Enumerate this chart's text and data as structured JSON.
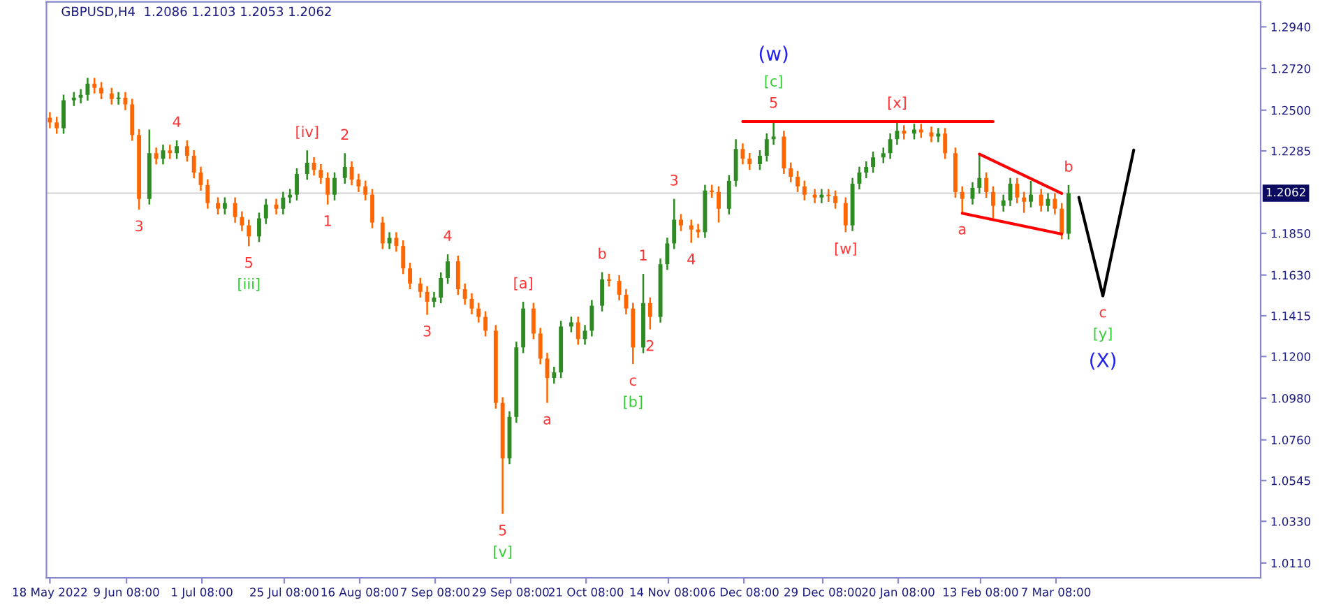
{
  "chart_data": {
    "type": "candlestick",
    "title": "GBPUSD,H4  1.2086 1.2103 1.2053 1.2062",
    "x": [
      "2022-05-18",
      "2022-05-20",
      "2022-05-22",
      "2022-05-25",
      "2022-05-27",
      "2022-05-29",
      "2022-05-31",
      "2022-06-02",
      "2022-06-05",
      "2022-06-07",
      "2022-06-09",
      "2022-06-11",
      "2022-06-13",
      "2022-06-16",
      "2022-06-18",
      "2022-06-20",
      "2022-06-22",
      "2022-06-24",
      "2022-06-27",
      "2022-06-29",
      "2022-07-01",
      "2022-07-03",
      "2022-07-06",
      "2022-07-08",
      "2022-07-11",
      "2022-07-13",
      "2022-07-15",
      "2022-07-18",
      "2022-07-20",
      "2022-07-23",
      "2022-07-25",
      "2022-07-27",
      "2022-07-29",
      "2022-08-01",
      "2022-08-03",
      "2022-08-05",
      "2022-08-07",
      "2022-08-09",
      "2022-08-12",
      "2022-08-14",
      "2022-08-16",
      "2022-08-18",
      "2022-08-20",
      "2022-08-23",
      "2022-08-25",
      "2022-08-27",
      "2022-08-29",
      "2022-08-31",
      "2022-09-03",
      "2022-09-05",
      "2022-09-07",
      "2022-09-09",
      "2022-09-11",
      "2022-09-14",
      "2022-09-16",
      "2022-09-18",
      "2022-09-20",
      "2022-09-22",
      "2022-09-25",
      "2022-09-27",
      "2022-09-29",
      "2022-10-01",
      "2022-10-03",
      "2022-10-06",
      "2022-10-08",
      "2022-10-10",
      "2022-10-12",
      "2022-10-14",
      "2022-10-17",
      "2022-10-19",
      "2022-10-21",
      "2022-10-23",
      "2022-10-26",
      "2022-10-28",
      "2022-10-31",
      "2022-11-02",
      "2022-11-04",
      "2022-11-07",
      "2022-11-09",
      "2022-11-12",
      "2022-11-14",
      "2022-11-16",
      "2022-11-18",
      "2022-11-21",
      "2022-11-23",
      "2022-11-25",
      "2022-11-27",
      "2022-11-29",
      "2022-12-02",
      "2022-12-04",
      "2022-12-06",
      "2022-12-08",
      "2022-12-11",
      "2022-12-13",
      "2022-12-15",
      "2022-12-18",
      "2022-12-20",
      "2022-12-22",
      "2022-12-24",
      "2022-12-27",
      "2022-12-29",
      "2022-12-31",
      "2023-01-02",
      "2023-01-05",
      "2023-01-07",
      "2023-01-09",
      "2023-01-11",
      "2023-01-13",
      "2023-01-16",
      "2023-01-18",
      "2023-01-20",
      "2023-01-22",
      "2023-01-25",
      "2023-01-27",
      "2023-01-30",
      "2023-02-01",
      "2023-02-03",
      "2023-02-06",
      "2023-02-08",
      "2023-02-11",
      "2023-02-13",
      "2023-02-15",
      "2023-02-17",
      "2023-02-20",
      "2023-02-22",
      "2023-02-24",
      "2023-02-26",
      "2023-02-28",
      "2023-03-03",
      "2023-03-05",
      "2023-03-07",
      "2023-03-09",
      "2023-03-11"
    ],
    "ohlc": [
      [
        1.246,
        1.249,
        1.2405,
        1.2435
      ],
      [
        1.2435,
        1.2465,
        1.2375,
        1.2405
      ],
      [
        1.2405,
        1.2582,
        1.2375,
        1.2552
      ],
      [
        1.2552,
        1.2596,
        1.2522,
        1.2566
      ],
      [
        1.2566,
        1.2611,
        1.2536,
        1.2581
      ],
      [
        1.2581,
        1.267,
        1.2551,
        1.264
      ],
      [
        1.264,
        1.267,
        1.2588,
        1.2618
      ],
      [
        1.2618,
        1.2648,
        1.2558,
        1.2588
      ],
      [
        1.2588,
        1.2618,
        1.2529,
        1.2559
      ],
      [
        1.2559,
        1.2596,
        1.2529,
        1.2566
      ],
      [
        1.2566,
        1.2596,
        1.25,
        1.253
      ],
      [
        1.253,
        1.256,
        1.2339,
        1.2369
      ],
      [
        1.2369,
        1.2399,
        1.1975,
        1.2032
      ],
      [
        1.2032,
        1.2398,
        1.2002,
        1.2273
      ],
      [
        1.2273,
        1.2303,
        1.2214,
        1.2244
      ],
      [
        1.2244,
        1.2318,
        1.2214,
        1.2288
      ],
      [
        1.2288,
        1.2318,
        1.2243,
        1.2273
      ],
      [
        1.2273,
        1.234,
        1.2243,
        1.231
      ],
      [
        1.231,
        1.234,
        1.2229,
        1.2259
      ],
      [
        1.2259,
        1.2289,
        1.2141,
        1.2171
      ],
      [
        1.2171,
        1.2201,
        1.2075,
        1.2105
      ],
      [
        1.2105,
        1.2135,
        1.198,
        1.201
      ],
      [
        1.201,
        1.204,
        1.195,
        1.198
      ],
      [
        1.198,
        1.204,
        1.195,
        1.201
      ],
      [
        1.201,
        1.204,
        1.1906,
        1.1936
      ],
      [
        1.1936,
        1.1966,
        1.1862,
        1.1892
      ],
      [
        1.1892,
        1.1922,
        1.1782,
        1.1834
      ],
      [
        1.1834,
        1.1959,
        1.1804,
        1.1929
      ],
      [
        1.1929,
        1.2032,
        1.1899,
        1.2002
      ],
      [
        1.2002,
        1.2032,
        1.195,
        1.198
      ],
      [
        1.198,
        1.2069,
        1.195,
        1.2039
      ],
      [
        1.2039,
        1.2084,
        1.2009,
        1.2054
      ],
      [
        1.2054,
        1.2193,
        1.2024,
        1.2163
      ],
      [
        1.2163,
        1.2288,
        1.2133,
        1.2222
      ],
      [
        1.2222,
        1.2252,
        1.2155,
        1.2185
      ],
      [
        1.2185,
        1.2215,
        1.2112,
        1.2142
      ],
      [
        1.2142,
        1.2172,
        1.2002,
        1.2054
      ],
      [
        1.2054,
        1.2172,
        1.2024,
        1.2142
      ],
      [
        1.2142,
        1.2273,
        1.2112,
        1.22
      ],
      [
        1.22,
        1.223,
        1.2104,
        1.2134
      ],
      [
        1.2134,
        1.2164,
        1.2068,
        1.2098
      ],
      [
        1.2098,
        1.2128,
        1.2024,
        1.2054
      ],
      [
        1.2054,
        1.2084,
        1.1877,
        1.1907
      ],
      [
        1.1907,
        1.1937,
        1.1767,
        1.1797
      ],
      [
        1.1797,
        1.1856,
        1.1767,
        1.1826
      ],
      [
        1.1826,
        1.1856,
        1.1753,
        1.1783
      ],
      [
        1.1783,
        1.1813,
        1.1635,
        1.1665
      ],
      [
        1.1665,
        1.1695,
        1.1555,
        1.1585
      ],
      [
        1.1585,
        1.1615,
        1.1511,
        1.1541
      ],
      [
        1.1541,
        1.1571,
        1.142,
        1.1489
      ],
      [
        1.1489,
        1.1541,
        1.1459,
        1.1511
      ],
      [
        1.1511,
        1.1644,
        1.1481,
        1.1614
      ],
      [
        1.1614,
        1.1739,
        1.1584,
        1.1702
      ],
      [
        1.1702,
        1.1732,
        1.1525,
        1.1555
      ],
      [
        1.1555,
        1.1585,
        1.1474,
        1.1504
      ],
      [
        1.1504,
        1.1534,
        1.1423,
        1.1453
      ],
      [
        1.1453,
        1.1483,
        1.1379,
        1.1409
      ],
      [
        1.1409,
        1.1439,
        1.1306,
        1.1336
      ],
      [
        1.1336,
        1.1366,
        1.0925,
        1.0955
      ],
      [
        1.0955,
        1.0985,
        1.0369,
        1.0662
      ],
      [
        1.0662,
        1.0911,
        1.0632,
        1.0881
      ],
      [
        1.0881,
        1.1278,
        1.0851,
        1.1248
      ],
      [
        1.1248,
        1.1489,
        1.1218,
        1.1453
      ],
      [
        1.1453,
        1.1483,
        1.1291,
        1.1321
      ],
      [
        1.1321,
        1.1351,
        1.1159,
        1.1189
      ],
      [
        1.1189,
        1.1219,
        1.0955,
        1.1087
      ],
      [
        1.1087,
        1.1146,
        1.1057,
        1.1116
      ],
      [
        1.1116,
        1.1388,
        1.1086,
        1.1358
      ],
      [
        1.1358,
        1.141,
        1.1328,
        1.138
      ],
      [
        1.138,
        1.141,
        1.1262,
        1.1292
      ],
      [
        1.1292,
        1.1366,
        1.1262,
        1.1336
      ],
      [
        1.1336,
        1.1498,
        1.1306,
        1.1468
      ],
      [
        1.1468,
        1.1645,
        1.1438,
        1.1607
      ],
      [
        1.1607,
        1.1637,
        1.1569,
        1.1599
      ],
      [
        1.1599,
        1.1629,
        1.1496,
        1.1526
      ],
      [
        1.1526,
        1.1556,
        1.1423,
        1.1453
      ],
      [
        1.1453,
        1.1483,
        1.116,
        1.1248
      ],
      [
        1.1248,
        1.1636,
        1.1218,
        1.1482
      ],
      [
        1.1482,
        1.1512,
        1.1343,
        1.1409
      ],
      [
        1.1409,
        1.1717,
        1.1379,
        1.1687
      ],
      [
        1.1687,
        1.1827,
        1.1657,
        1.1797
      ],
      [
        1.1797,
        1.2032,
        1.1767,
        1.1922
      ],
      [
        1.1922,
        1.1952,
        1.1862,
        1.1892
      ],
      [
        1.1892,
        1.1922,
        1.18,
        1.187
      ],
      [
        1.187,
        1.19,
        1.1826,
        1.1856
      ],
      [
        1.1856,
        1.2106,
        1.1826,
        1.2076
      ],
      [
        1.2076,
        1.2106,
        1.2038,
        1.2068
      ],
      [
        1.2068,
        1.2098,
        1.1907,
        1.198
      ],
      [
        1.198,
        1.2157,
        1.195,
        1.2127
      ],
      [
        1.2127,
        1.2347,
        1.2097,
        1.2295
      ],
      [
        1.2295,
        1.2325,
        1.2214,
        1.2244
      ],
      [
        1.2244,
        1.2274,
        1.2185,
        1.2215
      ],
      [
        1.2215,
        1.2289,
        1.2185,
        1.2259
      ],
      [
        1.2259,
        1.2377,
        1.2229,
        1.2347
      ],
      [
        1.2347,
        1.2442,
        1.2317,
        1.2361
      ],
      [
        1.2361,
        1.2391,
        1.2163,
        1.2193
      ],
      [
        1.2193,
        1.2223,
        1.2119,
        1.2149
      ],
      [
        1.2149,
        1.2179,
        1.2068,
        1.2098
      ],
      [
        1.2098,
        1.2128,
        1.2024,
        1.2054
      ],
      [
        1.2054,
        1.2084,
        1.2009,
        1.2039
      ],
      [
        1.2039,
        1.2084,
        1.2009,
        1.2054
      ],
      [
        1.2054,
        1.2084,
        1.2016,
        1.2046
      ],
      [
        1.2046,
        1.2076,
        1.198,
        1.201
      ],
      [
        1.201,
        1.204,
        1.1856,
        1.1892
      ],
      [
        1.1892,
        1.2142,
        1.1862,
        1.2112
      ],
      [
        1.2112,
        1.2201,
        1.2082,
        1.2171
      ],
      [
        1.2171,
        1.223,
        1.2141,
        1.22
      ],
      [
        1.22,
        1.2281,
        1.217,
        1.2251
      ],
      [
        1.2251,
        1.2303,
        1.2221,
        1.2273
      ],
      [
        1.2273,
        1.2377,
        1.2243,
        1.2347
      ],
      [
        1.2347,
        1.2442,
        1.2317,
        1.2391
      ],
      [
        1.2391,
        1.2421,
        1.2346,
        1.2376
      ],
      [
        1.2376,
        1.2428,
        1.2346,
        1.2398
      ],
      [
        1.2398,
        1.2428,
        1.2353,
        1.2383
      ],
      [
        1.2383,
        1.2413,
        1.2331,
        1.2361
      ],
      [
        1.2361,
        1.2406,
        1.2331,
        1.2376
      ],
      [
        1.2376,
        1.2406,
        1.2243,
        1.2273
      ],
      [
        1.2273,
        1.2303,
        1.2038,
        1.2068
      ],
      [
        1.2068,
        1.2098,
        1.1958,
        1.2032
      ],
      [
        1.2032,
        1.212,
        1.2002,
        1.209
      ],
      [
        1.209,
        1.2268,
        1.206,
        1.2142
      ],
      [
        1.2142,
        1.2172,
        1.2038,
        1.2068
      ],
      [
        1.2068,
        1.2098,
        1.1929,
        1.1995
      ],
      [
        1.1995,
        1.2054,
        1.1965,
        1.2024
      ],
      [
        1.2024,
        1.2142,
        1.1994,
        1.2112
      ],
      [
        1.2112,
        1.2142,
        1.2009,
        1.2039
      ],
      [
        1.2039,
        1.2069,
        1.1958,
        1.2017
      ],
      [
        1.2017,
        1.2127,
        1.1987,
        1.2054
      ],
      [
        1.2054,
        1.2084,
        1.1965,
        1.1995
      ],
      [
        1.1995,
        1.2062,
        1.1965,
        1.2032
      ],
      [
        1.2032,
        1.2062,
        1.195,
        1.198
      ],
      [
        1.198,
        1.201,
        1.1819,
        1.1848
      ],
      [
        1.1848,
        1.2105,
        1.1818,
        1.2062
      ]
    ],
    "colors": [
      "#ff6600",
      "#ff6600",
      "#2e8b22",
      "#2e8b22",
      "#2e8b22",
      "#2e8b22",
      "#ff6600",
      "#ff6600",
      "#ff6600",
      "#2e8b22",
      "#ff6600",
      "#ff6600",
      "#ff6600",
      "#2e8b22",
      "#ff6600",
      "#2e8b22",
      "#ff6600",
      "#2e8b22",
      "#ff6600",
      "#ff6600",
      "#ff6600",
      "#ff6600",
      "#ff6600",
      "#2e8b22",
      "#ff6600",
      "#ff6600",
      "#ff6600",
      "#2e8b22",
      "#2e8b22",
      "#ff6600",
      "#2e8b22",
      "#2e8b22",
      "#2e8b22",
      "#2e8b22",
      "#ff6600",
      "#ff6600",
      "#ff6600",
      "#2e8b22",
      "#2e8b22",
      "#ff6600",
      "#ff6600",
      "#ff6600",
      "#ff6600",
      "#ff6600",
      "#2e8b22",
      "#ff6600",
      "#ff6600",
      "#ff6600",
      "#ff6600",
      "#ff6600",
      "#2e8b22",
      "#2e8b22",
      "#2e8b22",
      "#ff6600",
      "#ff6600",
      "#ff6600",
      "#ff6600",
      "#ff6600",
      "#ff6600",
      "#ff6600",
      "#2e8b22",
      "#2e8b22",
      "#2e8b22",
      "#ff6600",
      "#ff6600",
      "#ff6600",
      "#2e8b22",
      "#2e8b22",
      "#2e8b22",
      "#ff6600",
      "#2e8b22",
      "#2e8b22",
      "#2e8b22",
      "#ff6600",
      "#ff6600",
      "#ff6600",
      "#ff6600",
      "#2e8b22",
      "#ff6600",
      "#2e8b22",
      "#2e8b22",
      "#2e8b22",
      "#ff6600",
      "#ff6600",
      "#ff6600",
      "#2e8b22",
      "#ff6600",
      "#ff6600",
      "#2e8b22",
      "#2e8b22",
      "#ff6600",
      "#ff6600",
      "#2e8b22",
      "#2e8b22",
      "#2e8b22",
      "#ff6600",
      "#ff6600",
      "#ff6600",
      "#ff6600",
      "#ff6600",
      "#2e8b22",
      "#ff6600",
      "#ff6600",
      "#ff6600",
      "#2e8b22",
      "#2e8b22",
      "#2e8b22",
      "#2e8b22",
      "#2e8b22",
      "#2e8b22",
      "#2e8b22",
      "#ff6600",
      "#2e8b22",
      "#ff6600",
      "#ff6600",
      "#2e8b22",
      "#ff6600",
      "#ff6600",
      "#ff6600",
      "#2e8b22",
      "#2e8b22",
      "#ff6600",
      "#ff6600",
      "#2e8b22",
      "#2e8b22",
      "#ff6600",
      "#ff6600",
      "#2e8b22",
      "#ff6600",
      "#2e8b22",
      "#ff6600",
      "#ff6600",
      "#2e8b22"
    ],
    "series": [
      {
        "type": "line",
        "color": "#ff0000",
        "x": [
          "2022-12-06",
          "2023-02-17"
        ],
        "values": [
          1.244,
          1.244
        ]
      },
      {
        "type": "line",
        "color": "#ff0000",
        "x": [
          "2023-02-13",
          "2023-03-09"
        ],
        "values": [
          1.2268,
          1.2061
        ]
      },
      {
        "type": "line",
        "color": "#ff0000",
        "x": [
          "2023-02-08",
          "2023-03-09"
        ],
        "values": [
          1.1956,
          1.1846
        ]
      },
      {
        "type": "line",
        "color": "#000000",
        "x": [
          "2023-03-14",
          "2023-03-21",
          "2023-03-30"
        ],
        "values": [
          1.204,
          1.152,
          1.229
        ]
      }
    ],
    "annotations": [
      {
        "text": "3",
        "x": "2022-06-13",
        "y": 1.1975
      },
      {
        "text": "4",
        "x": "2022-06-24",
        "y": 1.234
      },
      {
        "text": "5",
        "x": "2022-07-15",
        "y": 1.1782
      },
      {
        "text": "[iii]",
        "x": "2022-07-15",
        "y": 1.1782
      },
      {
        "text": "[iv]",
        "x": "2022-08-01",
        "y": 1.2288
      },
      {
        "text": "1",
        "x": "2022-08-07",
        "y": 1.2002
      },
      {
        "text": "2",
        "x": "2022-08-12",
        "y": 1.2273
      },
      {
        "text": "3",
        "x": "2022-09-05",
        "y": 1.142
      },
      {
        "text": "4",
        "x": "2022-09-11",
        "y": 1.1739
      },
      {
        "text": "5",
        "x": "2022-09-27",
        "y": 1.0369
      },
      {
        "text": "[v]",
        "x": "2022-09-27",
        "y": 1.0369
      },
      {
        "text": "[a]",
        "x": "2022-10-03",
        "y": 1.1489
      },
      {
        "text": "a",
        "x": "2022-10-10",
        "y": 1.0955
      },
      {
        "text": "b",
        "x": "2022-10-26",
        "y": 1.1645
      },
      {
        "text": "c",
        "x": "2022-11-04",
        "y": 1.116
      },
      {
        "text": "[b]",
        "x": "2022-11-04",
        "y": 1.116
      },
      {
        "text": "1",
        "x": "2022-11-07",
        "y": 1.1636
      },
      {
        "text": "2",
        "x": "2022-11-09",
        "y": 1.1343
      },
      {
        "text": "3",
        "x": "2022-11-16",
        "y": 1.2032
      },
      {
        "text": "4",
        "x": "2022-11-21",
        "y": 1.18
      },
      {
        "text": "5",
        "x": "2022-12-15",
        "y": 1.2442
      },
      {
        "text": "[c]",
        "x": "2022-12-15",
        "y": 1.2442
      },
      {
        "text": "(w)",
        "x": "2022-12-15",
        "y": 1.2442
      },
      {
        "text": "[w]",
        "x": "2023-01-05",
        "y": 1.1856
      },
      {
        "text": "[x]",
        "x": "2023-01-20",
        "y": 1.2442
      },
      {
        "text": "a",
        "x": "2023-02-08",
        "y": 1.1958
      },
      {
        "text": "b",
        "x": "2023-03-11",
        "y": 1.2105
      },
      {
        "text": "c",
        "x": "2023-03-21",
        "y": 1.152
      },
      {
        "text": "[y]",
        "x": "2023-03-21",
        "y": 1.152
      },
      {
        "text": "(X)",
        "x": "2023-03-21",
        "y": 1.152
      }
    ],
    "xlim": [
      "2022-05-17",
      "2023-05-06"
    ],
    "xticks": [
      {
        "value": "2022-05-18",
        "label": "18 May 2022"
      },
      {
        "value": "2022-06-09T08:00",
        "label": "9 Jun 08:00"
      },
      {
        "value": "2022-07-01T08:00",
        "label": "1 Jul 08:00"
      },
      {
        "value": "2022-07-25T08:00",
        "label": "25 Jul 08:00"
      },
      {
        "value": "2022-08-16T08:00",
        "label": "16 Aug 08:00"
      },
      {
        "value": "2022-09-07T08:00",
        "label": "7 Sep 08:00"
      },
      {
        "value": "2022-09-29T08:00",
        "label": "29 Sep 08:00"
      },
      {
        "value": "2022-10-21T08:00",
        "label": "21 Oct 08:00"
      },
      {
        "value": "2022-11-14T08:00",
        "label": "14 Nov 08:00"
      },
      {
        "value": "2022-12-06T08:00",
        "label": "6 Dec 08:00"
      },
      {
        "value": "2022-12-29T08:00",
        "label": "29 Dec 08:00"
      },
      {
        "value": "2023-01-20T08:00",
        "label": "20 Jan 08:00"
      },
      {
        "value": "2023-02-13T08:00",
        "label": "13 Feb 08:00"
      },
      {
        "value": "2023-03-07T08:00",
        "label": "7 Mar 08:00"
      }
    ],
    "ylim": [
      1.0032,
      1.3072
    ],
    "yticks": [
      {
        "value": 1.011,
        "label": "1.0110"
      },
      {
        "value": 1.033,
        "label": "1.0330"
      },
      {
        "value": 1.0545,
        "label": "1.0545"
      },
      {
        "value": 1.076,
        "label": "1.0760"
      },
      {
        "value": 1.098,
        "label": "1.0980"
      },
      {
        "value": 1.12,
        "label": "1.1200"
      },
      {
        "value": 1.1415,
        "label": "1.1415"
      },
      {
        "value": 1.163,
        "label": "1.1630"
      },
      {
        "value": 1.185,
        "label": "1.1850"
      },
      {
        "value": 1.2285,
        "label": "1.2285"
      },
      {
        "value": 1.25,
        "label": "1.2500"
      },
      {
        "value": 1.272,
        "label": "1.2720"
      },
      {
        "value": 1.294,
        "label": "1.2940"
      }
    ],
    "ref_lines": [
      {
        "axis": "y",
        "value": 1.2062,
        "label": "1.2062",
        "color": "#d3d3d3"
      }
    ]
  }
}
